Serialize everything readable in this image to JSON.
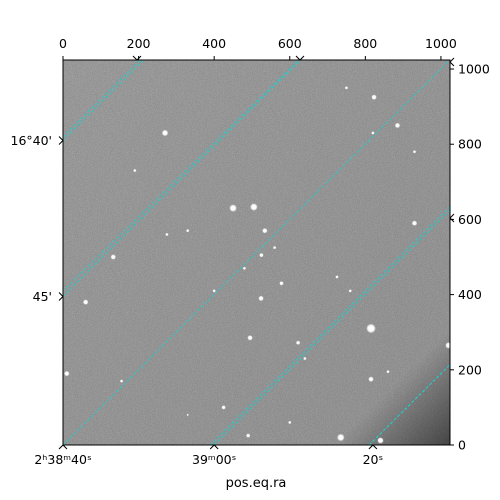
{
  "chart_data": {
    "type": "image",
    "xlabel": "pos.eq.ra",
    "ylabel": "",
    "title": "",
    "pixel_axes": {
      "x_top_ticks": [
        0,
        200,
        400,
        600,
        800,
        1000
      ],
      "y_right_ticks": [
        0,
        200,
        400,
        600,
        800,
        1000
      ],
      "xlim": [
        0,
        1024
      ],
      "ylim": [
        0,
        1024
      ]
    },
    "ra_ticks": [
      {
        "label": "2ʰ38ᵐ40ˢ",
        "px": 0
      },
      {
        "label": "39ᵐ00ˢ",
        "px": 400
      },
      {
        "label": "20ˢ",
        "px": 820
      }
    ],
    "dec_ticks": [
      {
        "label": "16°40'",
        "py": 810
      },
      {
        "label": "45'",
        "py": 395
      }
    ],
    "grid": true,
    "grid_color": "#22cccc",
    "grid_style": "dashed",
    "ra_grid_lines": [
      [
        [
          0,
          0
        ],
        [
          1024,
          1024
        ]
      ],
      [
        [
          0,
          410
        ],
        [
          624,
          1024
        ]
      ],
      [
        [
          0,
          820
        ],
        [
          204,
          1024
        ]
      ],
      [
        [
          400,
          0
        ],
        [
          1024,
          624
        ]
      ],
      [
        [
          810,
          0
        ],
        [
          1024,
          214
        ]
      ]
    ],
    "dec_grid_lines": [
      [
        [
          0,
          810
        ],
        [
          220,
          1030
        ]
      ],
      [
        [
          0,
          395
        ],
        [
          630,
          1025
        ]
      ],
      [
        [
          390,
          0
        ],
        [
          1024,
          634
        ]
      ],
      [
        [
          810,
          0
        ],
        [
          1024,
          214
        ]
      ]
    ],
    "stars": [
      {
        "x": 270,
        "y": 830,
        "r": 6
      },
      {
        "x": 823,
        "y": 925,
        "r": 5
      },
      {
        "x": 885,
        "y": 850,
        "r": 5
      },
      {
        "x": 450,
        "y": 630,
        "r": 7
      },
      {
        "x": 505,
        "y": 633,
        "r": 7
      },
      {
        "x": 534,
        "y": 570,
        "r": 5
      },
      {
        "x": 930,
        "y": 590,
        "r": 5
      },
      {
        "x": 133,
        "y": 500,
        "r": 5
      },
      {
        "x": 525,
        "y": 505,
        "r": 4
      },
      {
        "x": 578,
        "y": 430,
        "r": 4
      },
      {
        "x": 60,
        "y": 380,
        "r": 5
      },
      {
        "x": 524,
        "y": 390,
        "r": 5
      },
      {
        "x": 495,
        "y": 285,
        "r": 5
      },
      {
        "x": 622,
        "y": 272,
        "r": 4
      },
      {
        "x": 815,
        "y": 310,
        "r": 9
      },
      {
        "x": 1020,
        "y": 265,
        "r": 6
      },
      {
        "x": 10,
        "y": 190,
        "r": 5
      },
      {
        "x": 815,
        "y": 175,
        "r": 5
      },
      {
        "x": 425,
        "y": 100,
        "r": 4
      },
      {
        "x": 490,
        "y": 25,
        "r": 4
      },
      {
        "x": 735,
        "y": 20,
        "r": 7
      },
      {
        "x": 840,
        "y": 12,
        "r": 6
      },
      {
        "x": 820,
        "y": 830,
        "r": 3
      },
      {
        "x": 190,
        "y": 730,
        "r": 3
      },
      {
        "x": 560,
        "y": 525,
        "r": 3
      },
      {
        "x": 400,
        "y": 410,
        "r": 3
      },
      {
        "x": 330,
        "y": 570,
        "r": 3
      },
      {
        "x": 725,
        "y": 447,
        "r": 3
      },
      {
        "x": 760,
        "y": 410,
        "r": 3
      },
      {
        "x": 860,
        "y": 195,
        "r": 3
      },
      {
        "x": 640,
        "y": 230,
        "r": 3
      },
      {
        "x": 155,
        "y": 170,
        "r": 3
      },
      {
        "x": 330,
        "y": 80,
        "r": 2
      },
      {
        "x": 600,
        "y": 60,
        "r": 3
      },
      {
        "x": 930,
        "y": 780,
        "r": 3
      },
      {
        "x": 750,
        "y": 950,
        "r": 3
      },
      {
        "x": 275,
        "y": 560,
        "r": 3
      },
      {
        "x": 480,
        "y": 470,
        "r": 3
      }
    ]
  }
}
